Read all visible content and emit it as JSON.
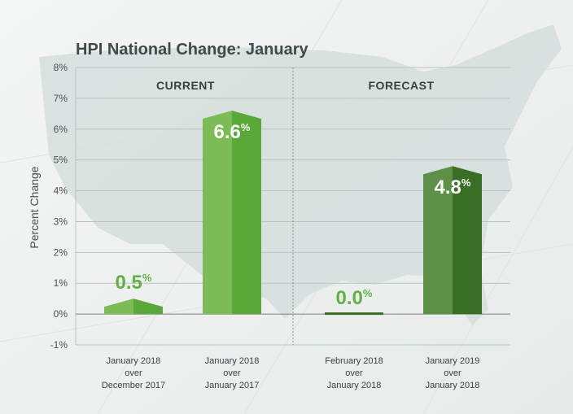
{
  "chart_data": {
    "type": "bar",
    "title": "HPI National Change: January",
    "ylabel": "Percent Change",
    "ylim": [
      -1,
      8
    ],
    "yticks": [
      "-1%",
      "0%",
      "1%",
      "2%",
      "3%",
      "4%",
      "5%",
      "6%",
      "7%",
      "8%"
    ],
    "grid": true,
    "groups": [
      {
        "label": "CURRENT",
        "category_indices": [
          0,
          1
        ]
      },
      {
        "label": "FORECAST",
        "category_indices": [
          2,
          3
        ]
      }
    ],
    "categories": [
      [
        "January 2018",
        "over",
        "December 2017"
      ],
      [
        "January 2018",
        "over",
        "January 2017"
      ],
      [
        "February 2018",
        "over",
        "January 2018"
      ],
      [
        "January 2019",
        "over",
        "January 2018"
      ]
    ],
    "values": [
      0.5,
      6.6,
      0.0,
      4.8
    ],
    "data_labels": [
      "0.5",
      "6.6",
      "0.0",
      "4.8"
    ],
    "label_suffix": "%",
    "colors": {
      "current_light": "#7dbb57",
      "current_dark": "#5aa83a",
      "forecast_light": "#5e8f47",
      "forecast_dark": "#3a6e25",
      "label_outside": "#62b046",
      "label_inside": "#ffffff"
    }
  }
}
